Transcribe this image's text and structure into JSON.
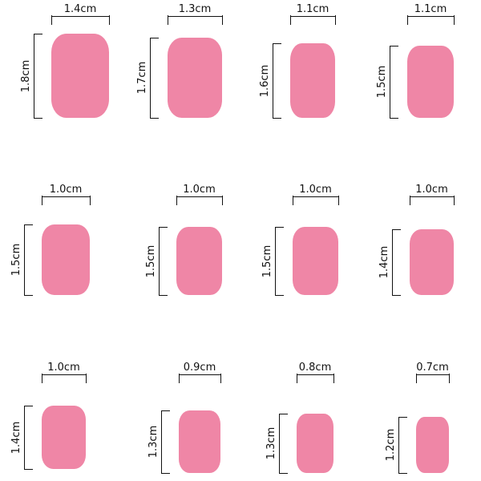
{
  "nail_color": "#ef86a6",
  "nails": [
    {
      "width_label": "1.4cm",
      "height_label": "1.8cm"
    },
    {
      "width_label": "1.3cm",
      "height_label": "1.7cm"
    },
    {
      "width_label": "1.1cm",
      "height_label": "1.6cm"
    },
    {
      "width_label": "1.1cm",
      "height_label": "1.5cm"
    },
    {
      "width_label": "1.0cm",
      "height_label": "1.5cm"
    },
    {
      "width_label": "1.0cm",
      "height_label": "1.5cm"
    },
    {
      "width_label": "1.0cm",
      "height_label": "1.5cm"
    },
    {
      "width_label": "1.0cm",
      "height_label": "1.4cm"
    },
    {
      "width_label": "1.0cm",
      "height_label": "1.4cm"
    },
    {
      "width_label": "0.9cm",
      "height_label": "1.3cm"
    },
    {
      "width_label": "0.8cm",
      "height_label": "1.3cm"
    },
    {
      "width_label": "0.7cm",
      "height_label": "1.2cm"
    }
  ]
}
